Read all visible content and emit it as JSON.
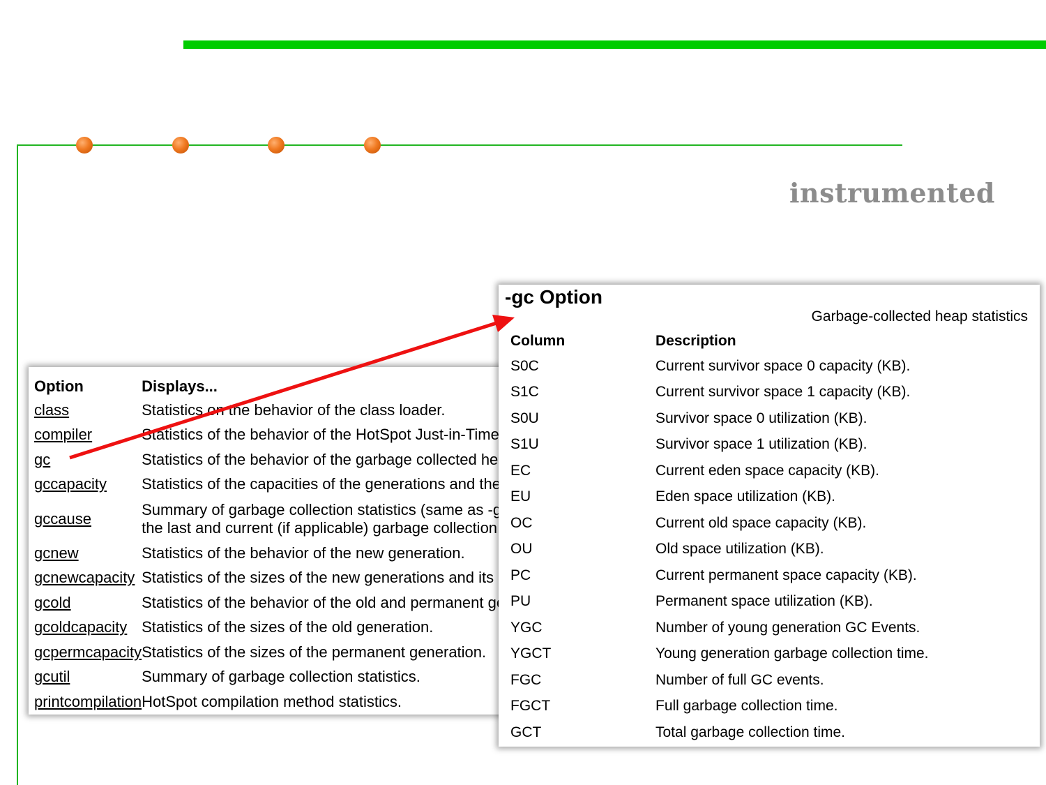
{
  "slide": {
    "title_word": "instrumented",
    "colors": {
      "accent_green": "#00cc00",
      "frame_green": "#22b522",
      "dot_orange": "#f07a22",
      "arrow_red": "#ee1111"
    }
  },
  "options_table": {
    "headers": {
      "option": "Option",
      "displays": "Displays..."
    },
    "rows": [
      {
        "option": "class",
        "description": "Statistics on the behavior of the class loader."
      },
      {
        "option": "compiler",
        "description": "Statistics of the behavior of the HotSpot Just-in-Time compiler."
      },
      {
        "option": "gc",
        "description": "Statistics of the behavior of the garbage collected heap."
      },
      {
        "option": "gccapacity",
        "description": "Statistics of the capacities of the generations and their corresponding spaces."
      },
      {
        "option": "gccause",
        "description": "Summary of garbage collection statistics (same as -gcutil), with the cause of the last and current (if applicable) garbage collection events."
      },
      {
        "option": "gcnew",
        "description": "Statistics of the behavior of the new generation."
      },
      {
        "option": "gcnewcapacity",
        "description": "Statistics of the sizes of the new generations and its corresponding spaces."
      },
      {
        "option": "gcold",
        "description": "Statistics of the behavior of the old and permanent generations."
      },
      {
        "option": "gcoldcapacity",
        "description": "Statistics of the sizes of the old generation."
      },
      {
        "option": "gcpermcapacity",
        "description": "Statistics of the sizes of the permanent generation."
      },
      {
        "option": "gcutil",
        "description": "Summary of garbage collection statistics."
      },
      {
        "option": "printcompilation",
        "description": "HotSpot compilation method statistics."
      }
    ]
  },
  "gc_panel": {
    "title": "-gc Option",
    "subtitle": "Garbage-collected heap statistics",
    "headers": {
      "column": "Column",
      "description": "Description"
    },
    "rows": [
      {
        "column": "S0C",
        "description": "Current survivor space 0 capacity (KB)."
      },
      {
        "column": "S1C",
        "description": "Current survivor space 1 capacity (KB)."
      },
      {
        "column": "S0U",
        "description": "Survivor space 0 utilization (KB)."
      },
      {
        "column": "S1U",
        "description": "Survivor space 1 utilization (KB)."
      },
      {
        "column": "EC",
        "description": "Current eden space capacity (KB)."
      },
      {
        "column": "EU",
        "description": "Eden space utilization (KB)."
      },
      {
        "column": "OC",
        "description": "Current old space capacity (KB)."
      },
      {
        "column": "OU",
        "description": "Old space utilization (KB)."
      },
      {
        "column": "PC",
        "description": "Current permanent space capacity (KB)."
      },
      {
        "column": "PU",
        "description": "Permanent space utilization (KB)."
      },
      {
        "column": "YGC",
        "description": "Number of young generation GC Events."
      },
      {
        "column": "YGCT",
        "description": "Young generation garbage collection time."
      },
      {
        "column": "FGC",
        "description": "Number of full GC events."
      },
      {
        "column": "FGCT",
        "description": "Full garbage collection time."
      },
      {
        "column": "GCT",
        "description": "Total garbage collection time."
      }
    ]
  }
}
